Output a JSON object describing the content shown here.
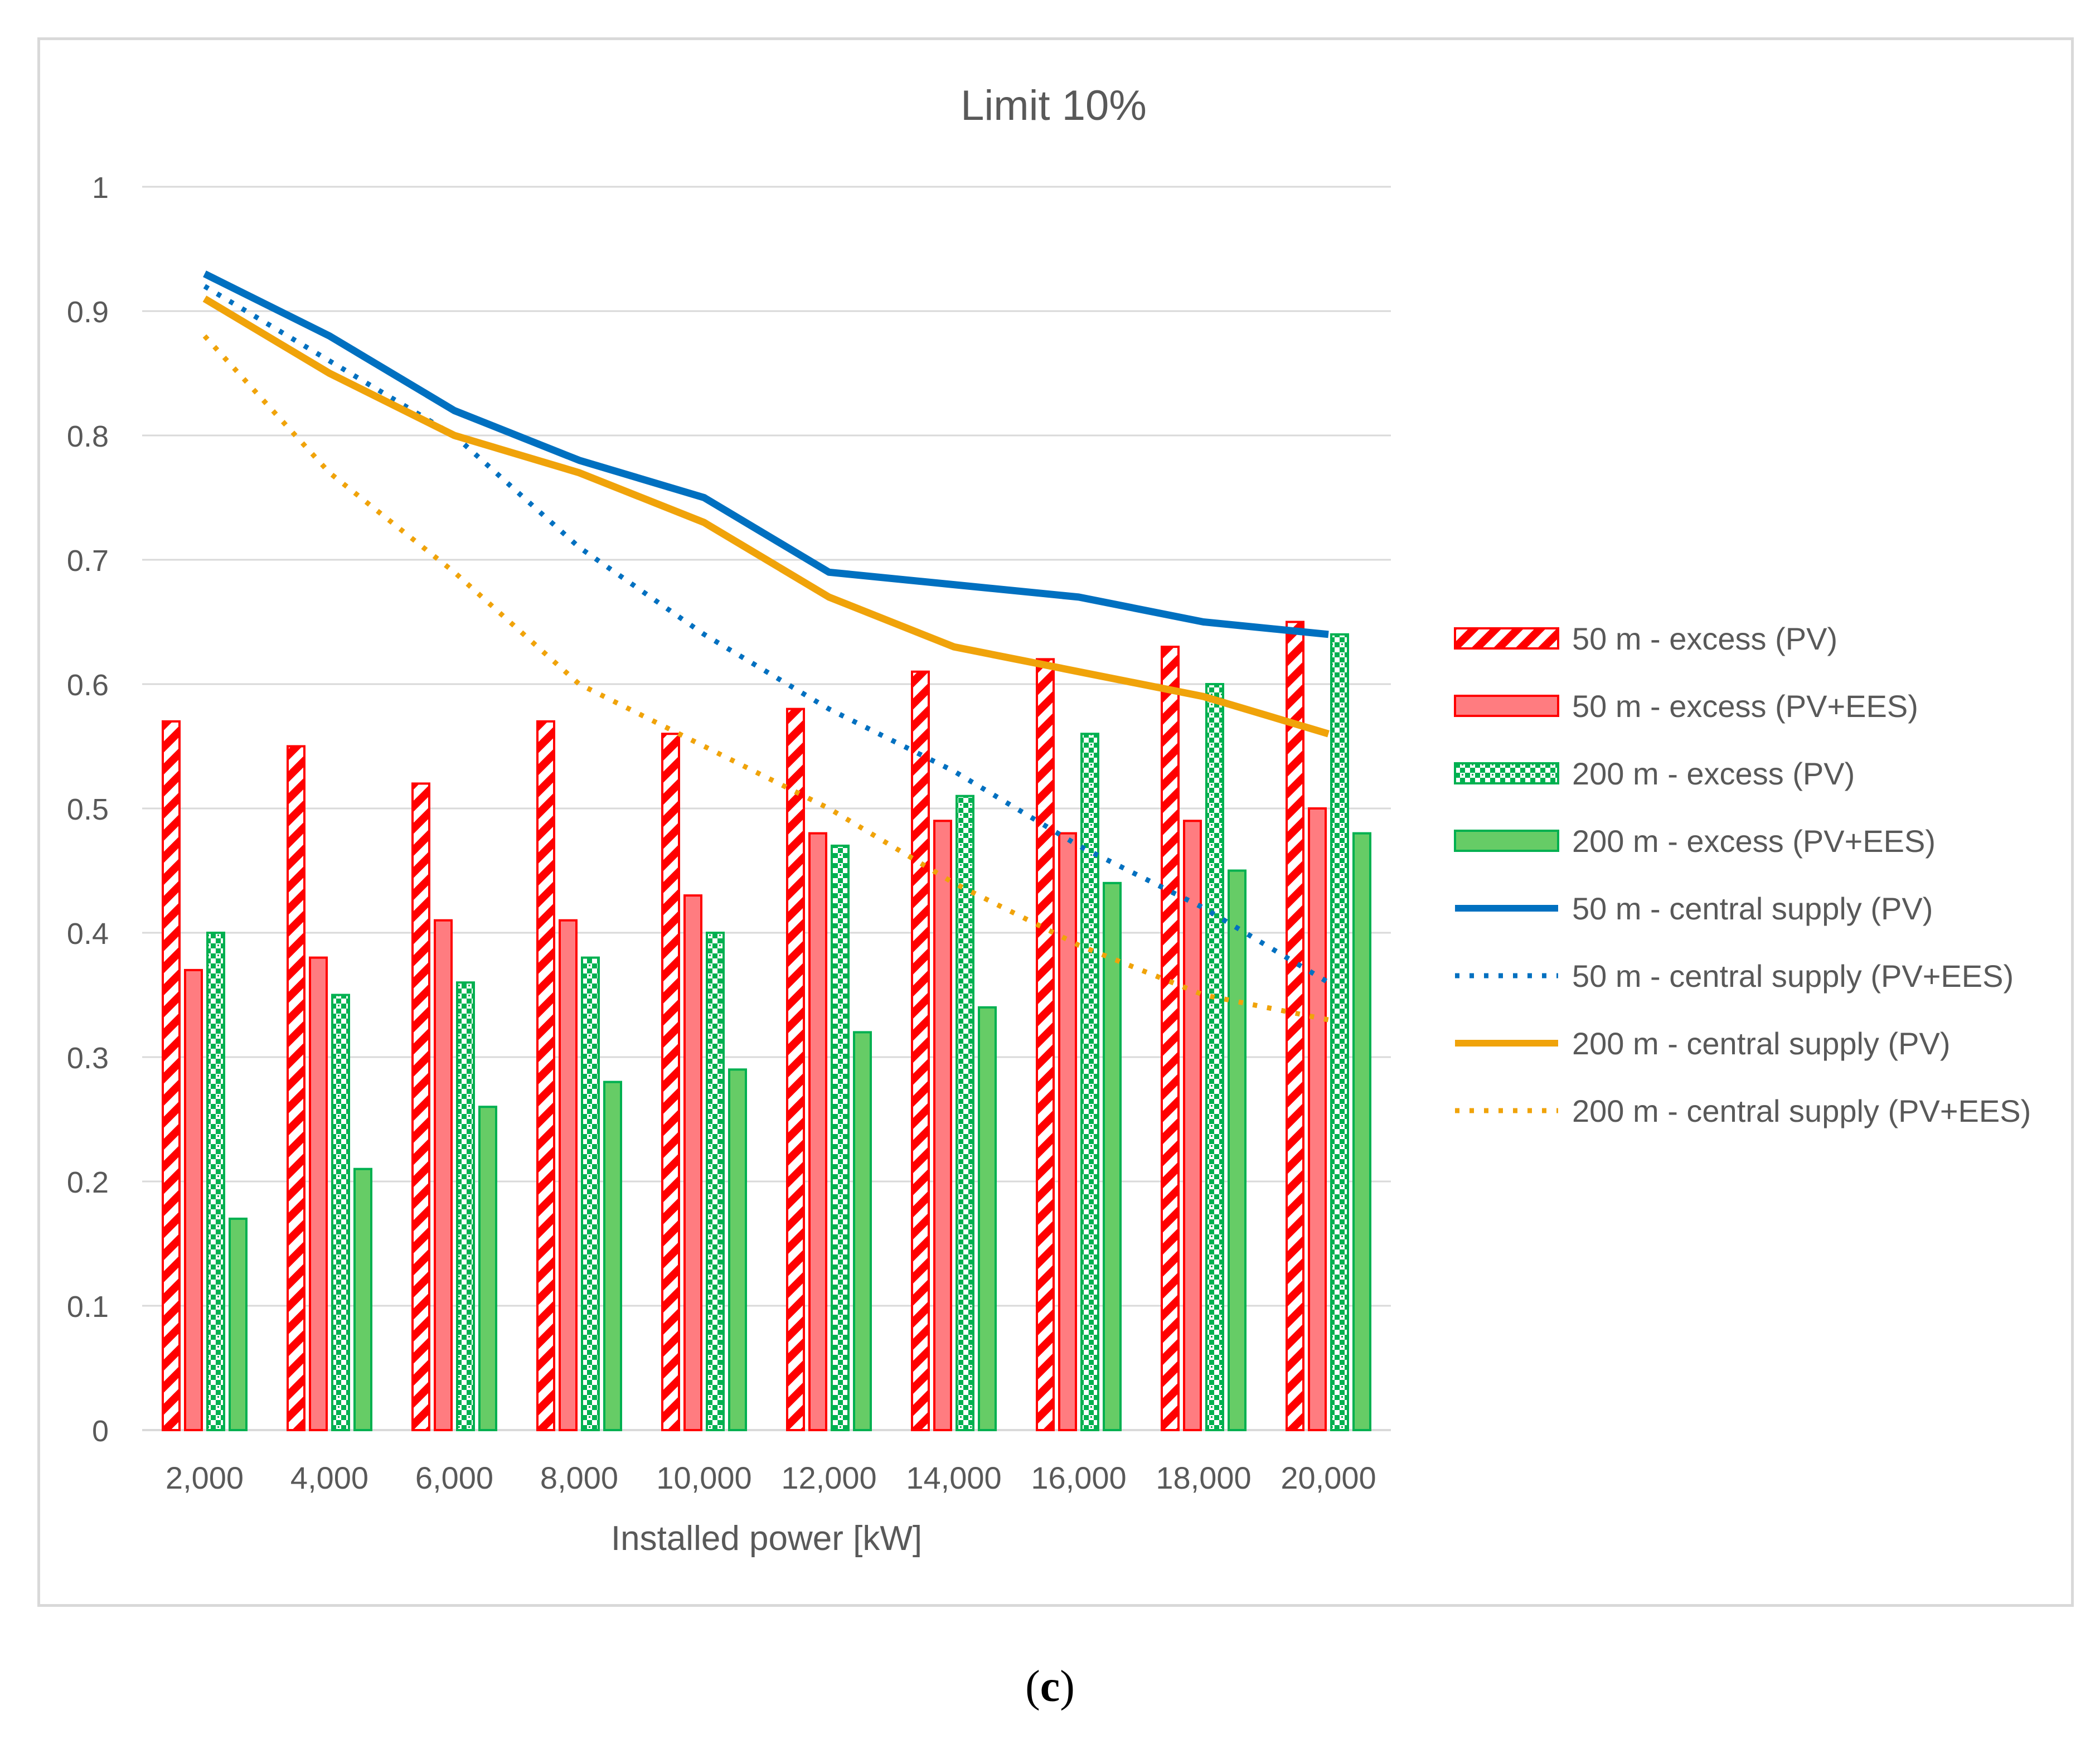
{
  "caption": {
    "open": "(",
    "letter": "c",
    "close": ")"
  },
  "chart_data": {
    "type": "bar",
    "title": "Limit 10%",
    "xlabel": "Installed power [kW]",
    "ylabel": "",
    "ylim": [
      0,
      1
    ],
    "yticks": [
      "0",
      "0.1",
      "0.2",
      "0.3",
      "0.4",
      "0.5",
      "0.6",
      "0.7",
      "0.8",
      "0.9",
      "1"
    ],
    "grid": true,
    "legend_position": "right",
    "categories": [
      "2,000",
      "4,000",
      "6,000",
      "8,000",
      "10,000",
      "12,000",
      "14,000",
      "16,000",
      "18,000",
      "20,000"
    ],
    "bar_series": [
      {
        "name": "50 m - excess (PV)",
        "style": "hatch-red",
        "color": "#ff0000",
        "values": [
          0.57,
          0.55,
          0.52,
          0.57,
          0.56,
          0.58,
          0.61,
          0.62,
          0.63,
          0.65
        ]
      },
      {
        "name": "50 m - excess (PV+EES)",
        "style": "solid-red",
        "color": "#ff7c80",
        "values": [
          0.37,
          0.38,
          0.41,
          0.41,
          0.43,
          0.48,
          0.49,
          0.48,
          0.49,
          0.5
        ]
      },
      {
        "name": "200 m - excess (PV)",
        "style": "pattern-green",
        "color": "#00b050",
        "values": [
          0.4,
          0.35,
          0.36,
          0.38,
          0.4,
          0.47,
          0.51,
          0.56,
          0.6,
          0.64
        ]
      },
      {
        "name": "200 m - excess (PV+EES)",
        "style": "solid-green",
        "color": "#66cc66",
        "values": [
          0.17,
          0.21,
          0.26,
          0.28,
          0.29,
          0.32,
          0.34,
          0.44,
          0.45,
          0.48
        ]
      }
    ],
    "line_series": [
      {
        "name": "50 m - central supply (PV)",
        "dash": "solid",
        "color": "#0070c0",
        "values": [
          0.93,
          0.88,
          0.82,
          0.78,
          0.75,
          0.69,
          0.68,
          0.67,
          0.65,
          0.64
        ]
      },
      {
        "name": "50 m - central supply (PV+EES)",
        "dash": "dotted",
        "color": "#0070c0",
        "values": [
          0.92,
          0.86,
          0.8,
          0.71,
          0.64,
          0.58,
          0.53,
          0.47,
          0.42,
          0.36
        ]
      },
      {
        "name": "200 m - central supply  (PV)",
        "dash": "solid",
        "color": "#f0a30a",
        "values": [
          0.91,
          0.85,
          0.8,
          0.77,
          0.73,
          0.67,
          0.63,
          0.61,
          0.59,
          0.56
        ]
      },
      {
        "name": "200 m - central supply (PV+EES)",
        "dash": "dotted",
        "color": "#f0a30a",
        "values": [
          0.88,
          0.77,
          0.69,
          0.6,
          0.55,
          0.5,
          0.44,
          0.39,
          0.35,
          0.33
        ]
      }
    ]
  }
}
